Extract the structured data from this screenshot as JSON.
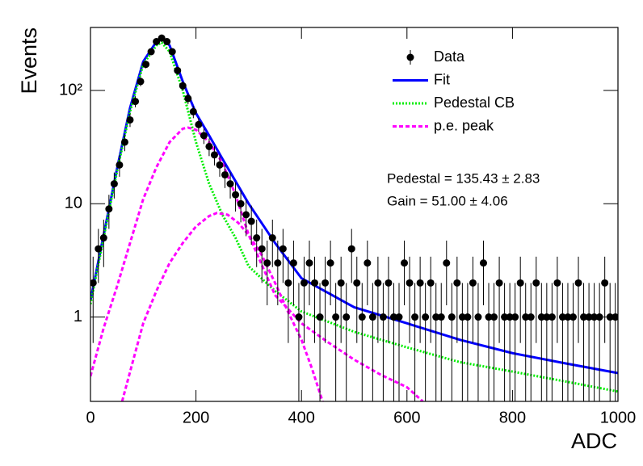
{
  "chart_data": {
    "type": "histogram-fit",
    "xlabel": "ADC",
    "ylabel": "Events",
    "xlim": [
      0,
      1000
    ],
    "ylim": [
      0.18,
      360
    ],
    "logy": true,
    "grid": false,
    "legend": "top-right",
    "xticks": [
      0,
      200,
      400,
      600,
      800,
      1000
    ],
    "yticks": [
      1,
      10,
      {
        "value": 100,
        "label": "10²"
      }
    ],
    "annotations": [
      "Pedestal = 135.43 ± 2.83",
      "Gain = 51.00 ± 4.06"
    ],
    "series": [
      {
        "name": "Data",
        "kind": "points",
        "color": "#000000",
        "x": [
          5,
          15,
          25,
          35,
          45,
          55,
          65,
          75,
          85,
          95,
          105,
          115,
          125,
          135,
          145,
          155,
          165,
          175,
          185,
          195,
          205,
          215,
          225,
          235,
          245,
          255,
          265,
          275,
          285,
          295,
          305,
          315,
          325,
          335,
          345,
          355,
          365,
          375,
          385,
          395,
          405,
          415,
          425,
          435,
          445,
          455,
          465,
          475,
          485,
          495,
          505,
          515,
          525,
          535,
          545,
          555,
          565,
          575,
          585,
          595,
          605,
          615,
          625,
          635,
          645,
          655,
          665,
          675,
          685,
          695,
          705,
          715,
          725,
          735,
          745,
          755,
          765,
          775,
          785,
          795,
          805,
          815,
          825,
          835,
          845,
          855,
          865,
          875,
          885,
          895,
          905,
          915,
          925,
          935,
          945,
          955,
          965,
          975,
          985,
          995
        ],
        "values": [
          2,
          4,
          5,
          9,
          15,
          22,
          35,
          55,
          80,
          120,
          170,
          220,
          270,
          290,
          270,
          220,
          150,
          110,
          85,
          65,
          50,
          40,
          32,
          27,
          22,
          18,
          15,
          12,
          10,
          8,
          7,
          5,
          4,
          3,
          5,
          3,
          4,
          2,
          3,
          1,
          2,
          3,
          2,
          1,
          2,
          3,
          1,
          2,
          1,
          4,
          2,
          1,
          3,
          1,
          2,
          1,
          2,
          1,
          1,
          3,
          2,
          1,
          2,
          1,
          2,
          1,
          1,
          3,
          1,
          2,
          1,
          1,
          2,
          1,
          3,
          1,
          1,
          2,
          1,
          1,
          1,
          2,
          1,
          1,
          2,
          1,
          1,
          1,
          2,
          1,
          1,
          1,
          2,
          1,
          1,
          1,
          1,
          2,
          1,
          1
        ],
        "errors": [
          1.41,
          2,
          2.24,
          3,
          3.87,
          4.69,
          5.92,
          7.42,
          8.94,
          10.95,
          13.04,
          14.83,
          16.43,
          17.03,
          16.43,
          14.83,
          12.25,
          10.49,
          9.22,
          8.06,
          7.07,
          6.32,
          5.66,
          5.2,
          4.69,
          4.24,
          3.87,
          3.46,
          3.16,
          2.83,
          2.65,
          2.24,
          2,
          1.73,
          2.24,
          1.73,
          2,
          1.41,
          1.73,
          1,
          1.41,
          1.73,
          1.41,
          1,
          1.41,
          1.73,
          1,
          1.41,
          1,
          2,
          1.41,
          1,
          1.73,
          1,
          1.41,
          1,
          1.41,
          1,
          1,
          1.73,
          1.41,
          1,
          1.41,
          1,
          1.41,
          1,
          1,
          1.73,
          1,
          1.41,
          1,
          1,
          1.41,
          1,
          1.73,
          1,
          1,
          1.41,
          1,
          1,
          1,
          1.41,
          1,
          1,
          1.41,
          1,
          1,
          1,
          1.41,
          1,
          1,
          1,
          1.41,
          1,
          1,
          1,
          1,
          1.41,
          1,
          1
        ]
      },
      {
        "name": "Fit",
        "kind": "line",
        "style": "solid",
        "color": "#0000ff",
        "x": [
          0,
          25,
          50,
          75,
          100,
          125,
          135,
          150,
          175,
          200,
          225,
          250,
          300,
          350,
          400,
          500,
          600,
          700,
          800,
          900,
          1000
        ],
        "values": [
          1.4,
          5.3,
          20,
          70,
          180,
          270,
          290,
          250,
          120,
          63,
          40,
          25,
          10,
          4.5,
          2.2,
          1.22,
          0.88,
          0.63,
          0.48,
          0.39,
          0.32
        ]
      },
      {
        "name": "Pedestal CB",
        "kind": "line",
        "style": "dotted",
        "color": "#00ee00",
        "x": [
          0,
          25,
          50,
          75,
          100,
          125,
          135,
          150,
          175,
          200,
          225,
          250,
          275,
          300,
          350,
          400,
          500,
          600,
          700,
          800,
          900,
          1000
        ],
        "values": [
          1.3,
          5,
          19,
          65,
          170,
          250,
          265,
          220,
          100,
          35,
          15,
          8,
          5,
          2.8,
          1.7,
          1.12,
          0.74,
          0.54,
          0.4,
          0.33,
          0.27,
          0.22
        ]
      },
      {
        "name": "p.e. peak",
        "kind": "line",
        "style": "dashed",
        "color": "#ff00ff",
        "x": [
          0,
          25,
          50,
          75,
          100,
          125,
          150,
          175,
          185,
          200,
          225,
          250,
          275,
          300,
          350,
          400,
          450,
          500,
          550,
          600,
          630
        ],
        "values": [
          0.3,
          0.8,
          1.84,
          4.5,
          11,
          21,
          35,
          46,
          47,
          45,
          35,
          23,
          12,
          5.3,
          1.56,
          0.88,
          0.6,
          0.42,
          0.31,
          0.24,
          0.18
        ]
      },
      {
        "kind": "line",
        "style": "dashed",
        "color": "#ff00ff",
        "x": [
          60,
          80,
          100,
          125,
          150,
          175,
          200,
          225,
          240,
          260,
          280,
          300,
          325,
          350,
          375,
          400,
          420,
          440
        ],
        "values": [
          0.18,
          0.4,
          0.88,
          1.7,
          3,
          4.5,
          6.3,
          7.8,
          8.3,
          8,
          6.8,
          5.3,
          3.5,
          2,
          1.1,
          0.63,
          0.35,
          0.18
        ]
      }
    ]
  }
}
